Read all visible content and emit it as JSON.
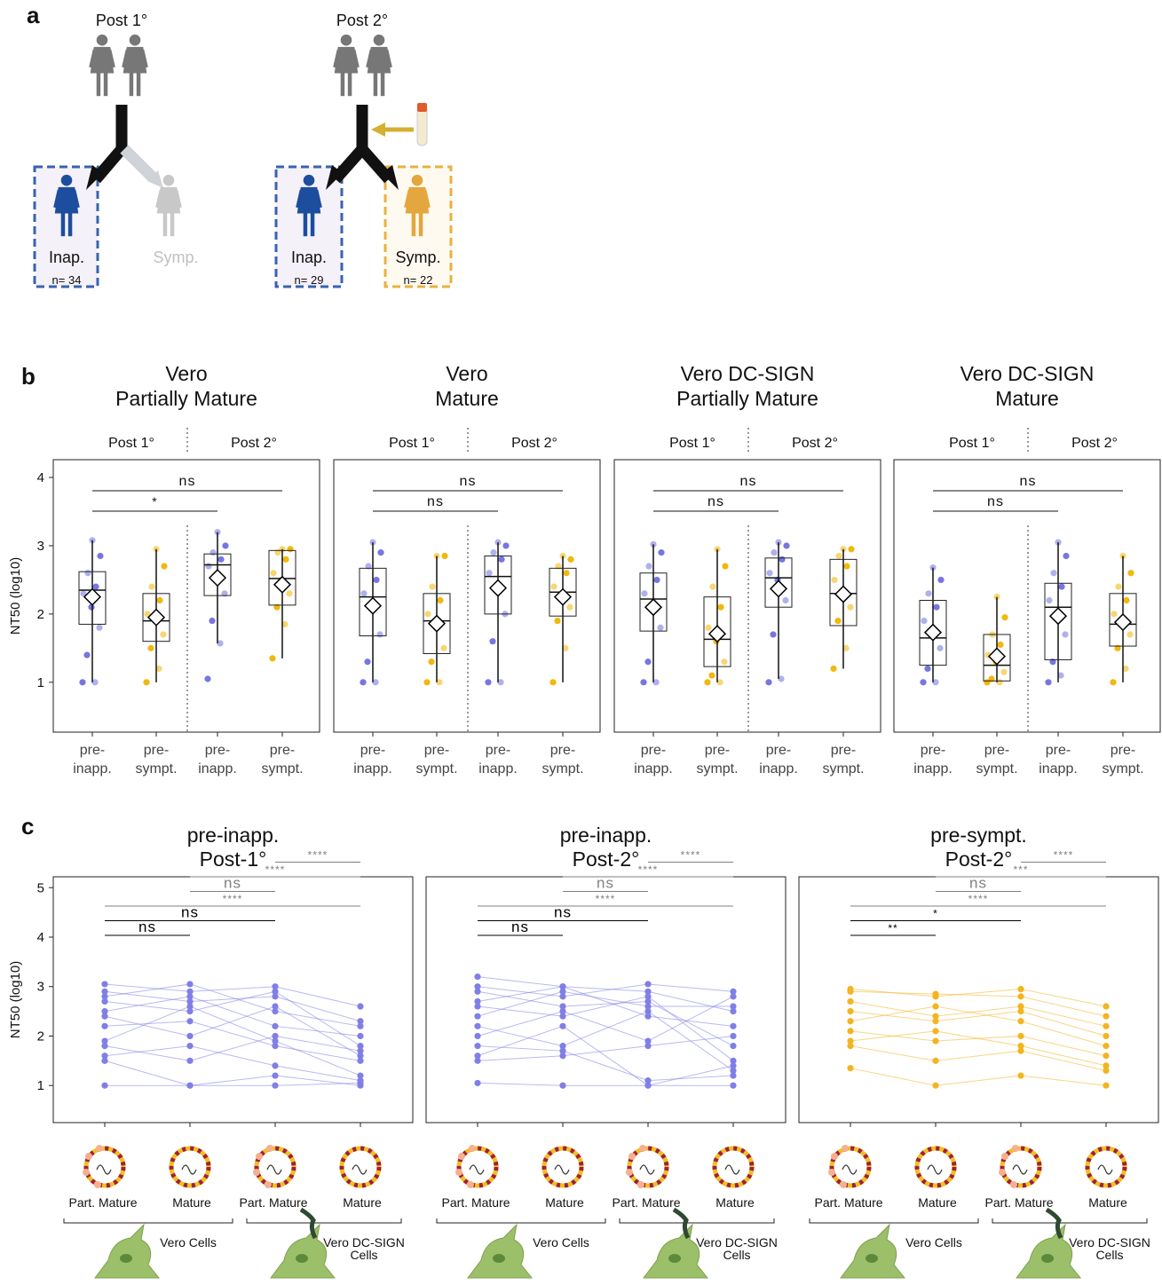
{
  "diagram": {
    "panel_a": "a",
    "panel_b": "b",
    "panel_c": "c",
    "left": {
      "header": "Post 1°",
      "inap": "Inap.",
      "inap_n": "n= 34",
      "symp": "Symp."
    },
    "right": {
      "header": "Post 2°",
      "inap": "Inap.",
      "inap_n": "n= 29",
      "symp": "Symp.",
      "symp_n": "n= 22"
    }
  },
  "chart_data": [
    {
      "type": "box",
      "title": [
        "Vero",
        "Partially Mature"
      ],
      "groups": [
        "Post 1°",
        "Post 2°"
      ],
      "y_label": "NT50 (log10)",
      "categories": [
        [
          "pre-",
          "inapp."
        ],
        [
          "pre-",
          "sympt."
        ],
        [
          "pre-",
          "inapp."
        ],
        [
          "pre-",
          "sympt."
        ]
      ],
      "ylim": [
        0.27,
        4.26
      ],
      "yticks": [
        1,
        2,
        3,
        4
      ],
      "boxes": [
        {
          "color": "#6f6fe0",
          "min": 1,
          "q1": 1.85,
          "median": 2.35,
          "q3": 2.62,
          "max": 3.08,
          "mean": 2.25,
          "points": [
            1,
            1,
            1.4,
            1.8,
            2.1,
            2.3,
            2.4,
            2.6,
            2.85,
            3.08
          ]
        },
        {
          "color": "#f0b400",
          "min": 1,
          "q1": 1.6,
          "median": 1.9,
          "q3": 2.3,
          "max": 2.95,
          "mean": 1.95,
          "points": [
            1,
            1.2,
            1.5,
            1.7,
            1.9,
            2.0,
            2.2,
            2.4,
            2.7,
            2.95
          ]
        },
        {
          "color": "#6f6fe0",
          "min": 1.57,
          "q1": 2.27,
          "median": 2.72,
          "q3": 2.88,
          "max": 3.2,
          "mean": 2.53,
          "points": [
            1.05,
            1.57,
            1.9,
            2.3,
            2.5,
            2.7,
            2.8,
            2.9,
            3.0,
            3.2
          ]
        },
        {
          "color": "#f0b400",
          "min": 1.35,
          "q1": 2.13,
          "median": 2.52,
          "q3": 2.93,
          "max": 2.95,
          "mean": 2.43,
          "points": [
            1.35,
            1.85,
            2.1,
            2.3,
            2.5,
            2.6,
            2.8,
            2.9,
            2.95,
            2.95
          ]
        }
      ],
      "brackets": [
        {
          "label": "*",
          "from": 0,
          "to": 2
        },
        {
          "label": "ns",
          "from": 0,
          "to": 3
        }
      ]
    },
    {
      "type": "box",
      "title": [
        "Vero",
        "Mature"
      ],
      "groups": [
        "Post 1°",
        "Post 2°"
      ],
      "categories": [
        [
          "pre-",
          "inapp."
        ],
        [
          "pre-",
          "sympt."
        ],
        [
          "pre-",
          "inapp."
        ],
        [
          "pre-",
          "sympt."
        ]
      ],
      "ylim": [
        0.27,
        4.26
      ],
      "boxes": [
        {
          "color": "#6f6fe0",
          "min": 1,
          "q1": 1.68,
          "median": 2.25,
          "q3": 2.67,
          "max": 3.05,
          "mean": 2.12,
          "points": [
            1,
            1,
            1.3,
            1.7,
            2.1,
            2.3,
            2.5,
            2.7,
            2.9,
            3.05
          ]
        },
        {
          "color": "#f0b400",
          "min": 1,
          "q1": 1.42,
          "median": 1.9,
          "q3": 2.3,
          "max": 2.85,
          "mean": 1.86,
          "points": [
            1,
            1,
            1.3,
            1.5,
            1.8,
            2.0,
            2.2,
            2.4,
            2.85,
            2.85
          ]
        },
        {
          "color": "#6f6fe0",
          "min": 1,
          "q1": 2.0,
          "median": 2.55,
          "q3": 2.85,
          "max": 3.05,
          "mean": 2.38,
          "points": [
            1,
            1,
            1.6,
            2.0,
            2.4,
            2.6,
            2.8,
            2.9,
            3.0,
            3.05
          ]
        },
        {
          "color": "#f0b400",
          "min": 1,
          "q1": 1.97,
          "median": 2.32,
          "q3": 2.67,
          "max": 2.85,
          "mean": 2.25,
          "points": [
            1,
            1.5,
            1.9,
            2.1,
            2.3,
            2.4,
            2.6,
            2.7,
            2.8,
            2.85
          ]
        }
      ],
      "brackets": [
        {
          "label": "ns",
          "from": 0,
          "to": 2
        },
        {
          "label": "ns",
          "from": 0,
          "to": 3
        }
      ]
    },
    {
      "type": "box",
      "title": [
        "Vero DC-SIGN",
        "Partially Mature"
      ],
      "groups": [
        "Post 1°",
        "Post 2°"
      ],
      "categories": [
        [
          "pre-",
          "inapp."
        ],
        [
          "pre-",
          "sympt."
        ],
        [
          "pre-",
          "inapp."
        ],
        [
          "pre-",
          "sympt."
        ]
      ],
      "ylim": [
        0.27,
        4.26
      ],
      "boxes": [
        {
          "color": "#6f6fe0",
          "min": 1,
          "q1": 1.75,
          "median": 2.22,
          "q3": 2.6,
          "max": 3.02,
          "mean": 2.1,
          "points": [
            1,
            1,
            1.3,
            1.8,
            2.1,
            2.3,
            2.5,
            2.7,
            2.9,
            3.02
          ]
        },
        {
          "color": "#f0b400",
          "min": 1,
          "q1": 1.23,
          "median": 1.63,
          "q3": 2.25,
          "max": 2.95,
          "mean": 1.71,
          "points": [
            1,
            1,
            1.1,
            1.3,
            1.6,
            1.8,
            2.1,
            2.4,
            2.7,
            2.95
          ]
        },
        {
          "color": "#6f6fe0",
          "min": 1.05,
          "q1": 2.1,
          "median": 2.53,
          "q3": 2.82,
          "max": 3.05,
          "mean": 2.37,
          "points": [
            1.0,
            1.05,
            1.7,
            2.2,
            2.5,
            2.6,
            2.8,
            2.9,
            3.0,
            3.05
          ]
        },
        {
          "color": "#f0b400",
          "min": 1.2,
          "q1": 1.83,
          "median": 2.3,
          "q3": 2.8,
          "max": 2.95,
          "mean": 2.29,
          "points": [
            1.2,
            1.5,
            1.9,
            2.1,
            2.3,
            2.5,
            2.7,
            2.85,
            2.95,
            2.95
          ]
        }
      ],
      "brackets": [
        {
          "label": "ns",
          "from": 0,
          "to": 2
        },
        {
          "label": "ns",
          "from": 0,
          "to": 3
        }
      ]
    },
    {
      "type": "box",
      "title": [
        "Vero DC-SIGN",
        "Mature"
      ],
      "groups": [
        "Post 1°",
        "Post 2°"
      ],
      "categories": [
        [
          "pre-",
          "inapp."
        ],
        [
          "pre-",
          "sympt."
        ],
        [
          "pre-",
          "inapp."
        ],
        [
          "pre-",
          "sympt."
        ]
      ],
      "ylim": [
        0.27,
        4.26
      ],
      "boxes": [
        {
          "color": "#6f6fe0",
          "min": 1,
          "q1": 1.25,
          "median": 1.65,
          "q3": 2.2,
          "max": 2.68,
          "mean": 1.73,
          "points": [
            1,
            1,
            1.2,
            1.5,
            1.7,
            1.9,
            2.1,
            2.3,
            2.5,
            2.68
          ]
        },
        {
          "color": "#f0b400",
          "min": 1,
          "q1": 1.02,
          "median": 1.25,
          "q3": 1.7,
          "max": 2.25,
          "mean": 1.38,
          "points": [
            1,
            1,
            1.05,
            1.15,
            1.3,
            1.4,
            1.55,
            1.7,
            1.95,
            2.25
          ]
        },
        {
          "color": "#6f6fe0",
          "min": 1,
          "q1": 1.33,
          "median": 2.1,
          "q3": 2.45,
          "max": 3.05,
          "mean": 1.97,
          "points": [
            1,
            1.1,
            1.3,
            1.7,
            2.0,
            2.2,
            2.4,
            2.6,
            2.85,
            3.05
          ]
        },
        {
          "color": "#f0b400",
          "min": 1,
          "q1": 1.53,
          "median": 1.85,
          "q3": 2.3,
          "max": 2.85,
          "mean": 1.88,
          "points": [
            1,
            1.2,
            1.5,
            1.7,
            1.85,
            2.0,
            2.2,
            2.4,
            2.6,
            2.85
          ]
        }
      ],
      "brackets": [
        {
          "label": "ns",
          "from": 0,
          "to": 2
        },
        {
          "label": "ns",
          "from": 0,
          "to": 3
        }
      ]
    },
    {
      "type": "paired-line",
      "title": [
        "pre-inapp.",
        "Post-1°"
      ],
      "y_label": "NT50 (log10)",
      "color": "#7f7fe6",
      "categories": [
        "Part. Mature",
        "Mature",
        "Part. Mature",
        "Mature"
      ],
      "cell_groups": [
        [
          "Vero Cells"
        ],
        [
          "Vero DC-SIGN",
          "Cells"
        ]
      ],
      "ylim": [
        0.25,
        5.22
      ],
      "yticks": [
        1,
        2,
        3,
        4,
        5
      ],
      "subjects": [
        [
          3.05,
          2.9,
          3.0,
          2.6
        ],
        [
          2.9,
          2.7,
          2.8,
          2.3
        ],
        [
          2.8,
          3.05,
          2.5,
          2.2
        ],
        [
          2.7,
          2.5,
          2.9,
          1.8
        ],
        [
          2.5,
          2.8,
          2.2,
          2.0
        ],
        [
          2.4,
          2.0,
          2.6,
          1.6
        ],
        [
          2.2,
          2.3,
          1.8,
          1.5
        ],
        [
          1.9,
          2.6,
          1.9,
          1.2
        ],
        [
          1.8,
          1.5,
          2.0,
          1.7
        ],
        [
          1.6,
          1.8,
          1.4,
          1.1
        ],
        [
          1.5,
          1.0,
          1.2,
          1.0
        ],
        [
          1.0,
          1.0,
          1.0,
          1.05
        ]
      ],
      "brackets": [
        {
          "label": "ns",
          "from": 0,
          "to": 1,
          "color": "#000000"
        },
        {
          "label": "ns",
          "from": 0,
          "to": 2,
          "color": "#000000"
        },
        {
          "label": "****",
          "from": 0,
          "to": 3,
          "color": "#808080"
        },
        {
          "label": "ns",
          "from": 1,
          "to": 2,
          "color": "#808080"
        },
        {
          "label": "****",
          "from": 1,
          "to": 3,
          "color": "#808080"
        },
        {
          "label": "****",
          "from": 2,
          "to": 3,
          "color": "#808080"
        }
      ]
    },
    {
      "type": "paired-line",
      "title": [
        "pre-inapp.",
        "Post-2°"
      ],
      "color": "#7f7fe6",
      "categories": [
        "Part. Mature",
        "Mature",
        "Part. Mature",
        "Mature"
      ],
      "cell_groups": [
        [
          "Vero Cells"
        ],
        [
          "Vero DC-SIGN",
          "Cells"
        ]
      ],
      "ylim": [
        0.25,
        5.22
      ],
      "subjects": [
        [
          3.2,
          3.0,
          2.9,
          2.5
        ],
        [
          3.0,
          2.8,
          3.05,
          2.9
        ],
        [
          2.9,
          2.6,
          2.7,
          1.8
        ],
        [
          2.7,
          3.0,
          2.4,
          2.2
        ],
        [
          2.6,
          2.4,
          2.8,
          1.5
        ],
        [
          2.4,
          2.9,
          2.6,
          2.6
        ],
        [
          2.2,
          1.8,
          2.5,
          1.3
        ],
        [
          2.0,
          2.5,
          1.9,
          2.8
        ],
        [
          1.8,
          1.7,
          1.1,
          1.2
        ],
        [
          1.6,
          2.2,
          1.0,
          1.0
        ],
        [
          1.5,
          1.6,
          1.8,
          2.0
        ],
        [
          1.05,
          1.0,
          1.0,
          1.4
        ]
      ],
      "brackets": [
        {
          "label": "ns",
          "from": 0,
          "to": 1,
          "color": "#000000"
        },
        {
          "label": "ns",
          "from": 0,
          "to": 2,
          "color": "#000000"
        },
        {
          "label": "****",
          "from": 0,
          "to": 3,
          "color": "#808080"
        },
        {
          "label": "ns",
          "from": 1,
          "to": 2,
          "color": "#808080"
        },
        {
          "label": "****",
          "from": 1,
          "to": 3,
          "color": "#808080"
        },
        {
          "label": "****",
          "from": 2,
          "to": 3,
          "color": "#808080"
        }
      ]
    },
    {
      "type": "paired-line",
      "title": [
        "pre-sympt.",
        "Post-2°"
      ],
      "color": "#f2b520",
      "categories": [
        "Part. Mature",
        "Mature",
        "Part. Mature",
        "Mature"
      ],
      "cell_groups": [
        [
          "Vero Cells"
        ],
        [
          "Vero DC-SIGN",
          "Cells"
        ]
      ],
      "ylim": [
        0.25,
        5.22
      ],
      "subjects": [
        [
          2.95,
          2.8,
          2.95,
          2.6
        ],
        [
          2.9,
          2.85,
          2.8,
          2.4
        ],
        [
          2.7,
          2.4,
          2.6,
          2.2
        ],
        [
          2.5,
          2.3,
          2.5,
          2.0
        ],
        [
          2.3,
          2.6,
          2.3,
          1.8
        ],
        [
          2.1,
          1.9,
          2.0,
          1.6
        ],
        [
          1.9,
          2.1,
          1.8,
          1.4
        ],
        [
          1.8,
          1.5,
          1.7,
          1.3
        ],
        [
          1.35,
          1.0,
          1.2,
          1.0
        ]
      ],
      "brackets": [
        {
          "label": "**",
          "from": 0,
          "to": 1,
          "color": "#000000"
        },
        {
          "label": "*",
          "from": 0,
          "to": 2,
          "color": "#000000"
        },
        {
          "label": "****",
          "from": 0,
          "to": 3,
          "color": "#808080"
        },
        {
          "label": "ns",
          "from": 1,
          "to": 2,
          "color": "#808080"
        },
        {
          "label": "***",
          "from": 1,
          "to": 3,
          "color": "#808080"
        },
        {
          "label": "****",
          "from": 2,
          "to": 3,
          "color": "#808080"
        }
      ]
    }
  ]
}
